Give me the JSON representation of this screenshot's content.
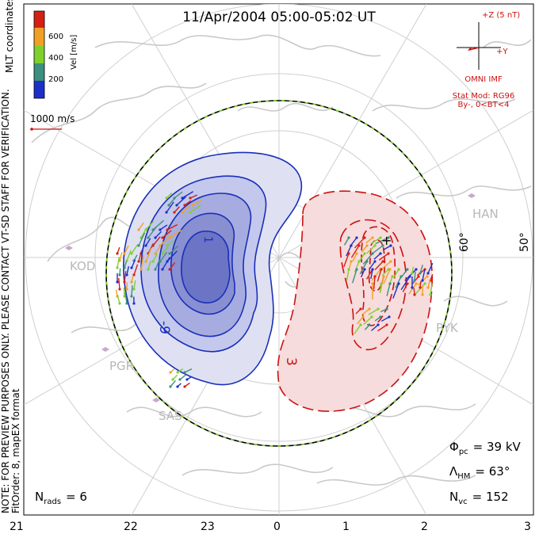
{
  "title": "11/Apr/2004 05:00-05:02 UT",
  "colorbar": {
    "title": "Vel [m/s]",
    "ticks": [
      "600",
      "400",
      "200"
    ],
    "colors": [
      "#d51f13",
      "#f0a125",
      "#7fd02d",
      "#3d8f7e",
      "#1d2fc9"
    ]
  },
  "coord_label": "MLT coordinates",
  "notice_text": "NOTE: FOR PREVIEW PURPOSES ONLY. PLEASE CONTACT VT-SD STAFF FOR VERIFICATION.",
  "fitorder_text": "FitOrder: 8,  mapEX format",
  "vector_scale_label": "1000 m/s",
  "imf": {
    "z_label": "+Z (5 nT)",
    "y_label": "+Y",
    "source": "OMNI IMF",
    "model": "Stat Mod: RG96",
    "condition": "By-, 0<BT<4"
  },
  "contours": {
    "negative_label": "-9",
    "negative_inner_label": "1",
    "positive_label": "3",
    "positive_mark": "+"
  },
  "stations": [
    "KOD",
    "PGR",
    "SAS",
    "HAN",
    "PYK"
  ],
  "lat_labels": [
    "60°",
    "50°"
  ],
  "stats": {
    "phi_symbol": "Φ",
    "phi_sub": "pc",
    "phi_value": "= 39 kV",
    "lambda_symbol": "Λ",
    "lambda_sub": "HM",
    "lambda_value": "= 63°",
    "nvc_symbol": "N",
    "nvc_sub": "vc",
    "nvc_value": "= 152",
    "nrads_symbol": "N",
    "nrads_sub": "rads",
    "nrads_value": "= 6"
  },
  "mlt_axis": [
    "21",
    "22",
    "23",
    "0",
    "1",
    "2",
    "3"
  ]
}
